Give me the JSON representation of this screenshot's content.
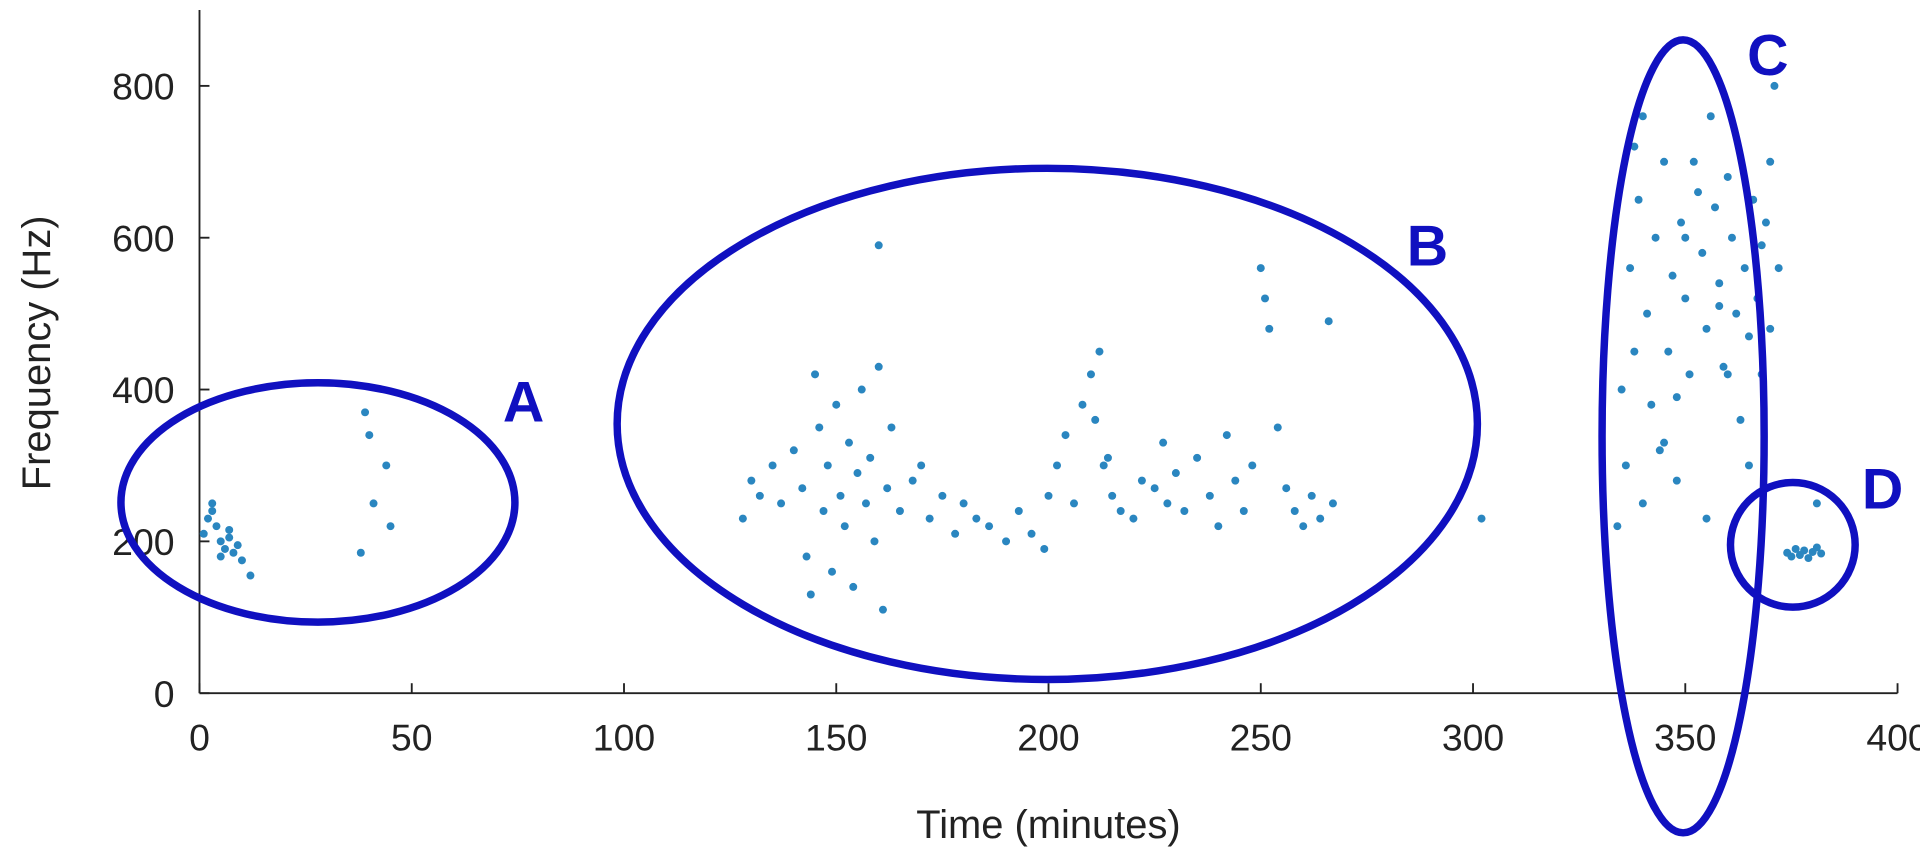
{
  "chart_data": {
    "type": "scatter",
    "x_label": "Time (minutes)",
    "y_label": "Frequency (Hz)",
    "color": "#2a86c0",
    "xlim": [
      0,
      400
    ],
    "xticks": [
      0,
      50,
      100,
      150,
      200,
      250,
      300,
      350,
      400
    ],
    "ylim": [
      0,
      900
    ],
    "yticks": [
      0,
      200,
      400,
      600,
      800
    ],
    "grid": false,
    "annotations": [
      "A",
      "B",
      "C",
      "D"
    ],
    "annotation_color": "#1010c0",
    "x": [
      1,
      2,
      3,
      4,
      5,
      6,
      7,
      8,
      9,
      10,
      12,
      3,
      5,
      7,
      38,
      39,
      40,
      41,
      44,
      45,
      128,
      130,
      132,
      135,
      137,
      140,
      142,
      143,
      144,
      145,
      146,
      147,
      148,
      149,
      150,
      151,
      152,
      153,
      154,
      155,
      156,
      157,
      158,
      159,
      160,
      161,
      162,
      163,
      165,
      168,
      170,
      172,
      175,
      178,
      180,
      183,
      186,
      190,
      193,
      196,
      199,
      200,
      202,
      204,
      206,
      208,
      210,
      211,
      212,
      213,
      214,
      215,
      217,
      220,
      222,
      225,
      227,
      228,
      230,
      232,
      235,
      238,
      240,
      242,
      244,
      246,
      248,
      250,
      251,
      252,
      254,
      256,
      258,
      260,
      262,
      264,
      266,
      267,
      160,
      302,
      334,
      335,
      336,
      337,
      338,
      339,
      340,
      341,
      342,
      343,
      344,
      345,
      346,
      347,
      348,
      349,
      350,
      351,
      352,
      353,
      354,
      355,
      356,
      357,
      358,
      359,
      360,
      361,
      362,
      363,
      364,
      365,
      366,
      367,
      368,
      369,
      370,
      371,
      372,
      340,
      345,
      350,
      355,
      360,
      365,
      370,
      338,
      348,
      358,
      368,
      374,
      375,
      376,
      377,
      378,
      379,
      380,
      381,
      382,
      381
    ],
    "y": [
      210,
      230,
      250,
      220,
      200,
      190,
      215,
      185,
      195,
      175,
      155,
      240,
      180,
      205,
      185,
      370,
      340,
      250,
      300,
      220,
      230,
      280,
      260,
      300,
      250,
      320,
      270,
      180,
      130,
      420,
      350,
      240,
      300,
      160,
      380,
      260,
      220,
      330,
      140,
      290,
      400,
      250,
      310,
      200,
      430,
      110,
      270,
      350,
      240,
      280,
      300,
      230,
      260,
      210,
      250,
      230,
      220,
      200,
      240,
      210,
      190,
      260,
      300,
      340,
      250,
      380,
      420,
      360,
      450,
      300,
      310,
      260,
      240,
      230,
      280,
      270,
      330,
      250,
      290,
      240,
      310,
      260,
      220,
      340,
      280,
      240,
      300,
      560,
      520,
      480,
      350,
      270,
      240,
      220,
      260,
      230,
      490,
      250,
      590,
      230,
      220,
      400,
      300,
      560,
      450,
      650,
      760,
      500,
      380,
      600,
      320,
      700,
      450,
      550,
      280,
      620,
      520,
      420,
      700,
      660,
      580,
      480,
      760,
      640,
      540,
      430,
      680,
      600,
      500,
      360,
      560,
      470,
      650,
      520,
      420,
      620,
      700,
      800,
      560,
      250,
      330,
      600,
      230,
      420,
      300,
      480,
      720,
      390,
      510,
      590,
      185,
      180,
      190,
      182,
      188,
      178,
      186,
      192,
      184,
      250
    ]
  }
}
